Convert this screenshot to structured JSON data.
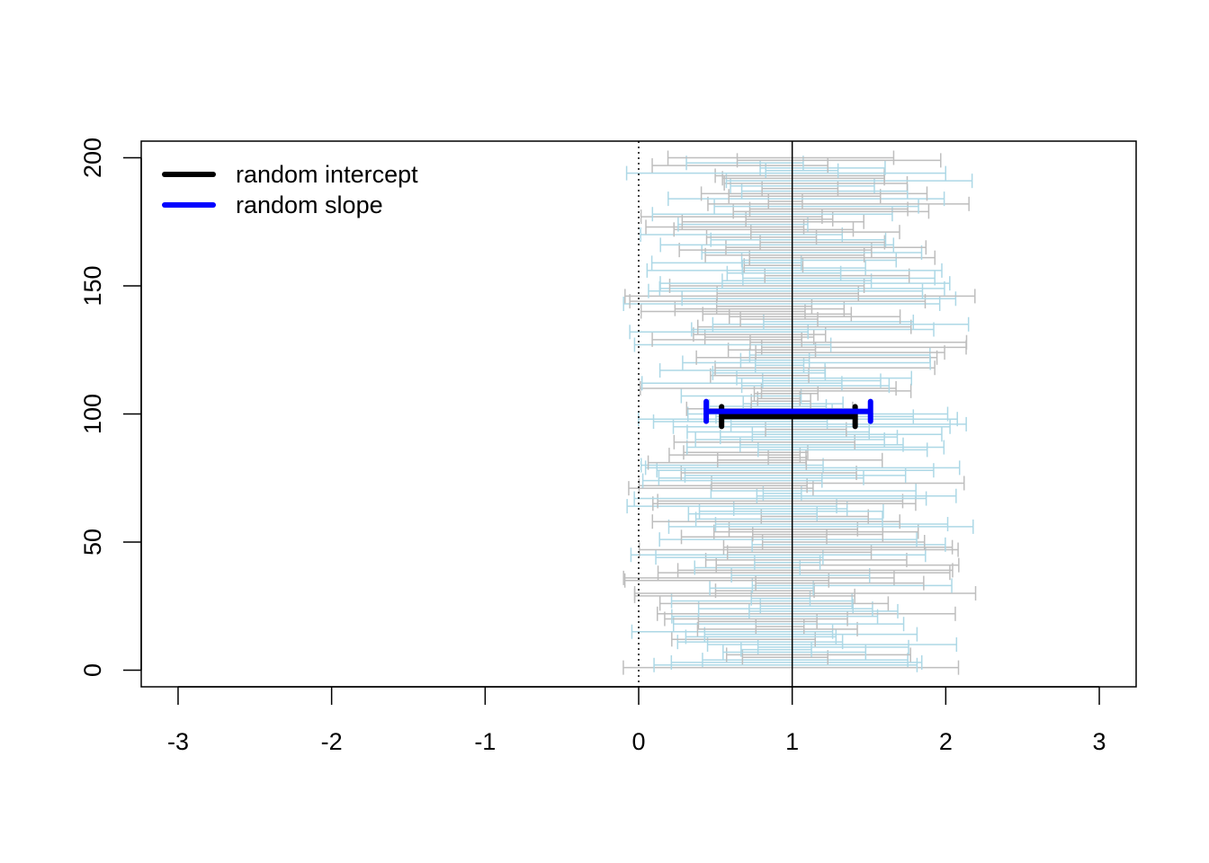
{
  "chart_data": {
    "type": "errorbar",
    "title": "",
    "xlabel": "",
    "ylabel": "",
    "xlim": [
      -3.24,
      3.24
    ],
    "ylim": [
      -6.5,
      206.5
    ],
    "x_ticks": [
      -3,
      -2,
      -1,
      0,
      1,
      2,
      3
    ],
    "x_tick_labels": [
      "-3",
      "-2",
      "-1",
      "0",
      "1",
      "2",
      "3"
    ],
    "y_ticks": [
      0,
      50,
      100,
      150,
      200
    ],
    "y_tick_labels": [
      "0",
      "50",
      "100",
      "150",
      "200"
    ],
    "reference_lines": [
      {
        "x": 0,
        "style": "dotted",
        "color": "#000000"
      },
      {
        "x": 1,
        "style": "solid",
        "color": "#000000"
      }
    ],
    "legend": {
      "position": "top-left",
      "entries": [
        {
          "label": "random intercept",
          "color": "#000000"
        },
        {
          "label": "random slope",
          "color": "#0000ff"
        }
      ]
    },
    "background_intervals": {
      "count": 200,
      "y_range": [
        1,
        200
      ],
      "lower_range": [
        -0.1,
        0.85
      ],
      "upper_range": [
        1.05,
        2.2
      ],
      "colors": [
        "#bebebe",
        "#add8e6"
      ]
    },
    "series": [
      {
        "name": "random intercept",
        "color": "#000000",
        "y": 99,
        "lower": 0.54,
        "upper": 1.41
      },
      {
        "name": "random slope",
        "color": "#0000ff",
        "y": 101,
        "lower": 0.44,
        "upper": 1.51
      }
    ]
  }
}
